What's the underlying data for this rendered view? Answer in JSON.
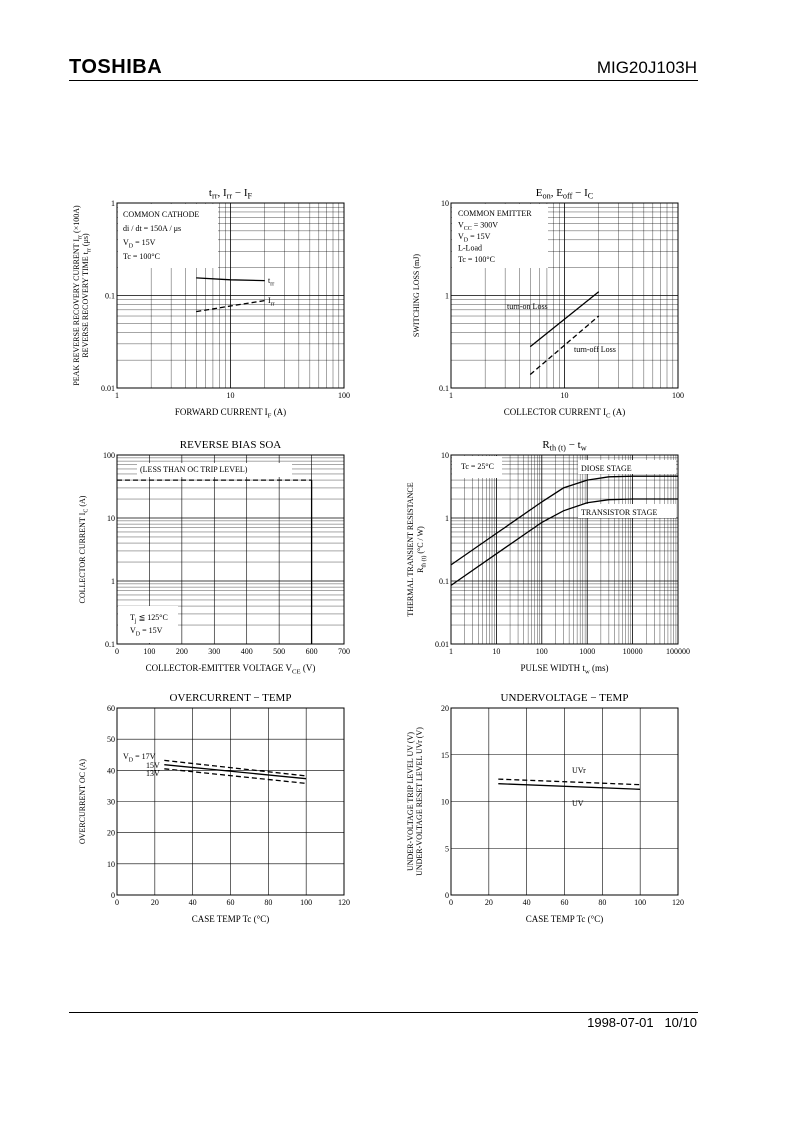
{
  "header": {
    "brand": "TOSHIBA",
    "part_number": "MIG20J103H"
  },
  "footer": {
    "date": "1998-07-01",
    "page": "10/10"
  },
  "chart_data": [
    {
      "type": "line",
      "title": [
        "t",
        "rr",
        ", I",
        "rr",
        " − I",
        "F"
      ],
      "xlabel": [
        "FORWARD CURRENT  I",
        "F",
        "  (A)"
      ],
      "ylabel": [
        "PEAK REVERSE RECOVERY CURRENT  I",
        "rr",
        "  (×100A)",
        "REVERSE RECOVERY TIME  t",
        "rr",
        "  (μs)"
      ],
      "xscale": "log",
      "yscale": "log",
      "xlim": [
        1,
        100
      ],
      "ylim": [
        0.01,
        1
      ],
      "xticks": [
        "1",
        "10",
        "100"
      ],
      "yticks": [
        "0.01",
        "0.1",
        "1"
      ],
      "annotation": [
        "COMMON CATHODE",
        "di / dt = 150A / μs",
        "V",
        "D",
        " = 15V",
        "Tc = 100°C"
      ],
      "series": [
        {
          "name": [
            "t",
            "rr"
          ],
          "dash": false,
          "points": [
            [
              5,
              0.155
            ],
            [
              10,
              0.148
            ],
            [
              20,
              0.145
            ]
          ]
        },
        {
          "name": [
            "I",
            "rr"
          ],
          "dash": true,
          "points": [
            [
              5,
              0.067
            ],
            [
              10,
              0.077
            ],
            [
              20,
              0.088
            ]
          ]
        }
      ]
    },
    {
      "type": "line",
      "title": [
        "E",
        "on",
        ", E",
        "off",
        " − I",
        "C"
      ],
      "xlabel": [
        "COLLECTOR CURRENT  I",
        "C",
        "  (A)"
      ],
      "ylabel": [
        "SWITCHING LOSS  (mJ)"
      ],
      "xscale": "log",
      "yscale": "log",
      "xlim": [
        1,
        100
      ],
      "ylim": [
        0.1,
        10
      ],
      "xticks": [
        "1",
        "10",
        "100"
      ],
      "yticks": [
        "0.1",
        "1",
        "10"
      ],
      "annotation": [
        "COMMON EMITTER",
        "V",
        "CC",
        " = 300V",
        "V",
        "D",
        " = 15V",
        "L-Load",
        "Tc = 100°C"
      ],
      "series": [
        {
          "name": "turn-on Loss",
          "dash": false,
          "points": [
            [
              5,
              0.28
            ],
            [
              20,
              1.1
            ]
          ]
        },
        {
          "name": "turn-off Loss",
          "dash": true,
          "points": [
            [
              5,
              0.14
            ],
            [
              20,
              0.6
            ]
          ]
        }
      ]
    },
    {
      "type": "line",
      "title": "REVERSE BIAS SOA",
      "xlabel": [
        "COLLECTOR-EMITTER VOLTAGE  V",
        "CE",
        "  (V)"
      ],
      "ylabel": [
        "COLLECTOR CURRENT  I",
        "C",
        "  (A)"
      ],
      "xscale": "linear",
      "yscale": "log",
      "xlim": [
        0,
        700
      ],
      "ylim": [
        0.1,
        100
      ],
      "xticks": [
        "0",
        "100",
        "200",
        "300",
        "400",
        "500",
        "600",
        "700"
      ],
      "yticks": [
        "0.1",
        "1",
        "10",
        "100"
      ],
      "annotation": [
        "(LESS THAN OC TRIP LEVEL)",
        "T",
        "j",
        " ≦ 125°C",
        "V",
        "D",
        " = 15V"
      ],
      "series": [
        {
          "dash": true,
          "points": [
            [
              0,
              40
            ],
            [
              600,
              40
            ]
          ]
        },
        {
          "dash": false,
          "points": [
            [
              600,
              40
            ],
            [
              600,
              0.1
            ]
          ]
        }
      ]
    },
    {
      "type": "line",
      "title": [
        "R",
        "th (t)",
        "  −  t",
        "w"
      ],
      "xlabel": [
        "PULSE WIDTH  t",
        "w",
        "  (ms)"
      ],
      "ylabel": [
        "THERMAL TRANSIENT RESISTANCE",
        "R",
        "th (t)",
        "  (°C / W)"
      ],
      "xscale": "log",
      "yscale": "log",
      "xlim": [
        1,
        100000
      ],
      "ylim": [
        0.01,
        10
      ],
      "xticks": [
        "1",
        "10",
        "100",
        "1000",
        "10000",
        "100000"
      ],
      "yticks": [
        "0.01",
        "0.1",
        "1",
        "10"
      ],
      "annotation": [
        "Tc = 25°C"
      ],
      "series": [
        {
          "name": "DIOSE STAGE",
          "dash": false,
          "points": [
            [
              1,
              0.18
            ],
            [
              10,
              0.57
            ],
            [
              100,
              1.8
            ],
            [
              300,
              3.0
            ],
            [
              1000,
              4.0
            ],
            [
              3000,
              4.5
            ],
            [
              10000,
              4.6
            ],
            [
              100000,
              4.6
            ]
          ]
        },
        {
          "name": "TRANSISTOR STAGE",
          "dash": false,
          "points": [
            [
              1,
              0.085
            ],
            [
              10,
              0.27
            ],
            [
              100,
              0.85
            ],
            [
              300,
              1.3
            ],
            [
              1000,
              1.75
            ],
            [
              3000,
              1.95
            ],
            [
              10000,
              2.0
            ],
            [
              100000,
              2.0
            ]
          ]
        }
      ]
    },
    {
      "type": "line",
      "title": "OVERCURRENT  −  TEMP",
      "xlabel": "CASE TEMP   Tc   (°C)",
      "ylabel": "OVERCURRENT   OC   (A)",
      "xscale": "linear",
      "yscale": "linear",
      "xlim": [
        0,
        120
      ],
      "ylim": [
        0,
        60
      ],
      "xticks": [
        "0",
        "20",
        "40",
        "60",
        "80",
        "100",
        "120"
      ],
      "yticks": [
        "0",
        "10",
        "20",
        "30",
        "40",
        "50",
        "60"
      ],
      "series": [
        {
          "name": [
            "V",
            "D",
            " = 17V"
          ],
          "dash": true,
          "points": [
            [
              25,
              43.2
            ],
            [
              100,
              38.2
            ]
          ]
        },
        {
          "name": "15V",
          "dash": false,
          "points": [
            [
              25,
              41.8
            ],
            [
              100,
              37.3
            ]
          ]
        },
        {
          "name": "13V",
          "dash": true,
          "points": [
            [
              25,
              40.5
            ],
            [
              100,
              35.8
            ]
          ]
        }
      ]
    },
    {
      "type": "line",
      "title": "UNDERVOLTAGE  −  TEMP",
      "xlabel": "CASE TEMP   Tc   (°C)",
      "ylabel": [
        "UNDER-VOLTAGE TRIP LEVEL  UV  (V)",
        "UNDER-VOLTAGE RESET LEVEL  UVr  (V)"
      ],
      "xscale": "linear",
      "yscale": "linear",
      "xlim": [
        0,
        120
      ],
      "ylim": [
        0,
        20
      ],
      "xticks": [
        "0",
        "20",
        "40",
        "60",
        "80",
        "100",
        "120"
      ],
      "yticks": [
        "0",
        "5",
        "10",
        "15",
        "20"
      ],
      "series": [
        {
          "name": "UVr",
          "dash": true,
          "points": [
            [
              25,
              12.4
            ],
            [
              100,
              11.8
            ]
          ]
        },
        {
          "name": "UV",
          "dash": false,
          "points": [
            [
              25,
              11.9
            ],
            [
              100,
              11.3
            ]
          ]
        }
      ]
    }
  ]
}
